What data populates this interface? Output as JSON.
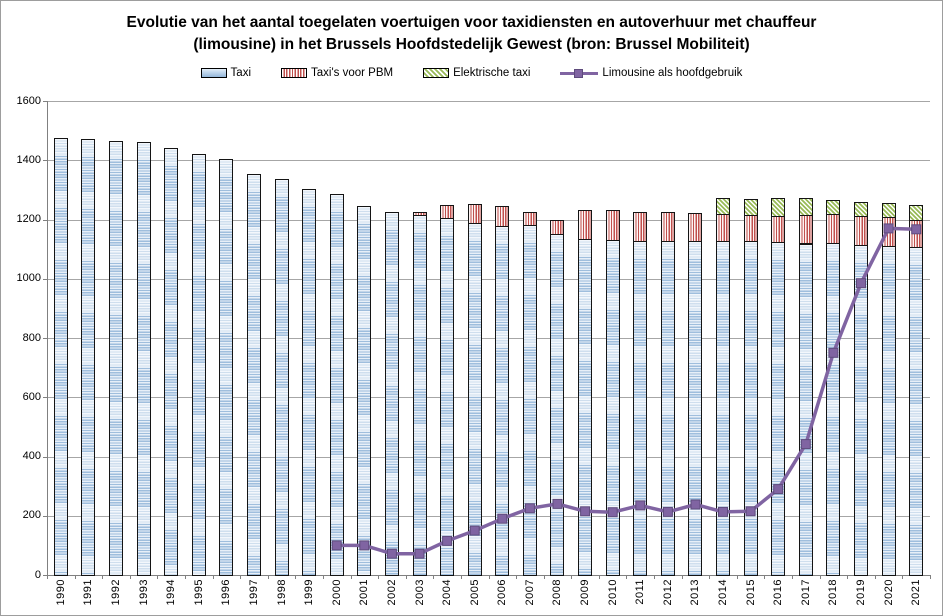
{
  "title": {
    "line1": "Evolutie van het aantal toegelaten voertuigen voor taxidiensten en autoverhuur met chauffeur",
    "line2": "(limousine) in het Brussels Hoofdstedelijk Gewest (bron: Brussel Mobiliteit)"
  },
  "legend": [
    {
      "label": "Taxi",
      "swatch": "blue-bar"
    },
    {
      "label": "Taxi's voor PBM",
      "swatch": "red-vertical-stripes"
    },
    {
      "label": "Elektrische taxi",
      "swatch": "green-diagonal-stripes"
    },
    {
      "label": "Limousine als hoofdgebruik",
      "swatch": "purple-line-square-marker"
    }
  ],
  "colors": {
    "taxi_stripe_dark": "#9fbedd",
    "taxi_stripe_light": "#e7eff8",
    "pbm_stripe": "#c0504d",
    "electric_stripe": "#9abb59",
    "limo_line": "#8064a2",
    "limo_marker_border": "#5e4b7c",
    "bar_border": "#141414",
    "gridline": "#a6a6a6",
    "axis": "#808080",
    "text": "#000000"
  },
  "chart_data": {
    "type": "bar+line",
    "subtype": "stacked bars with line overlay",
    "categories": [
      "1990",
      "1991",
      "1992",
      "1993",
      "1994",
      "1995",
      "1996",
      "1997",
      "1998",
      "1999",
      "2000",
      "2001",
      "2002",
      "2003",
      "2004",
      "2005",
      "2006",
      "2007",
      "2008",
      "2009",
      "2010",
      "2011",
      "2012",
      "2013",
      "2014",
      "2015",
      "2016",
      "2017",
      "2018",
      "2019",
      "2020",
      "2021"
    ],
    "series": [
      {
        "name": "Taxi",
        "render": "stacked-bar",
        "values": [
          1475,
          1472,
          1465,
          1460,
          1440,
          1420,
          1405,
          1355,
          1337,
          1302,
          1285,
          1245,
          1226,
          1215,
          1205,
          1188,
          1178,
          1180,
          1150,
          1133,
          1131,
          1128,
          1128,
          1126,
          1126,
          1128,
          1125,
          1119,
          1120,
          1115,
          1109,
          1106
        ]
      },
      {
        "name": "Taxi's voor PBM",
        "render": "stacked-bar",
        "values": [
          0,
          0,
          0,
          0,
          0,
          0,
          0,
          0,
          0,
          0,
          0,
          0,
          0,
          10,
          45,
          64,
          69,
          46,
          50,
          99,
          102,
          96,
          96,
          96,
          92,
          88,
          86,
          96,
          98,
          98,
          101,
          93
        ]
      },
      {
        "name": "Elektrische taxi",
        "render": "stacked-bar",
        "values": [
          0,
          0,
          0,
          0,
          0,
          0,
          0,
          0,
          0,
          0,
          0,
          0,
          0,
          0,
          0,
          0,
          0,
          0,
          0,
          0,
          0,
          0,
          0,
          0,
          54,
          53,
          60,
          56,
          47,
          45,
          47,
          50
        ]
      },
      {
        "name": "Limousine als hoofdgebruik",
        "render": "line",
        "values": [
          null,
          null,
          null,
          null,
          null,
          null,
          null,
          null,
          null,
          null,
          100,
          100,
          72,
          72,
          115,
          150,
          190,
          225,
          240,
          215,
          212,
          235,
          213,
          238,
          213,
          215,
          290,
          442,
          750,
          985,
          1170,
          1167
        ]
      }
    ],
    "ylim": [
      0,
      1600
    ],
    "yticks": [
      0,
      200,
      400,
      600,
      800,
      1000,
      1200,
      1400,
      1600
    ],
    "xlabel": "",
    "ylabel": "",
    "grid": true,
    "legend_position": "top",
    "x_tick_label_rotation_deg": 90
  }
}
